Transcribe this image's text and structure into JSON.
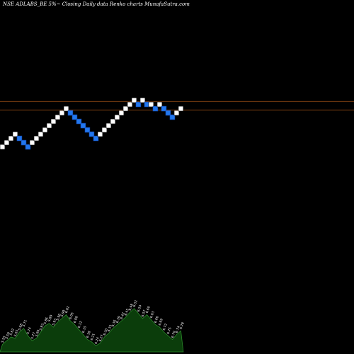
{
  "title": "NSE ADLABS_BE 5%~  Closing Daily data  Renko  charts MunafaSutra.com",
  "colors": {
    "background": "#000000",
    "up_brick": "#ffffff",
    "down_brick": "#2277ee",
    "down_brick_border": "#1144aa",
    "reference_line": "#8b4513",
    "volume_fill": "#0b3d0b",
    "volume_stroke": "#2b8a2b",
    "label_text": "#ffffff"
  },
  "chart_data": {
    "type": "renko",
    "title": "NSE ADLABS_BE 5%~  Closing Daily data  Renko  charts MunafaSutra.com",
    "brick_size_pct": 5,
    "bricks": [
      {
        "level": 0,
        "dir": "up"
      },
      {
        "level": 1,
        "dir": "up"
      },
      {
        "level": 2,
        "dir": "up"
      },
      {
        "level": 3,
        "dir": "up"
      },
      {
        "level": 2,
        "dir": "down"
      },
      {
        "level": 1,
        "dir": "down"
      },
      {
        "level": 0,
        "dir": "down"
      },
      {
        "level": 1,
        "dir": "up"
      },
      {
        "level": 2,
        "dir": "up"
      },
      {
        "level": 3,
        "dir": "up"
      },
      {
        "level": 4,
        "dir": "up"
      },
      {
        "level": 5,
        "dir": "up"
      },
      {
        "level": 6,
        "dir": "up"
      },
      {
        "level": 7,
        "dir": "up"
      },
      {
        "level": 8,
        "dir": "up"
      },
      {
        "level": 9,
        "dir": "up"
      },
      {
        "level": 8,
        "dir": "down"
      },
      {
        "level": 7,
        "dir": "down"
      },
      {
        "level": 6,
        "dir": "down"
      },
      {
        "level": 5,
        "dir": "down"
      },
      {
        "level": 4,
        "dir": "down"
      },
      {
        "level": 3,
        "dir": "down"
      },
      {
        "level": 2,
        "dir": "down"
      },
      {
        "level": 3,
        "dir": "up"
      },
      {
        "level": 4,
        "dir": "up"
      },
      {
        "level": 5,
        "dir": "up"
      },
      {
        "level": 6,
        "dir": "up"
      },
      {
        "level": 7,
        "dir": "up"
      },
      {
        "level": 8,
        "dir": "up"
      },
      {
        "level": 9,
        "dir": "up"
      },
      {
        "level": 10,
        "dir": "up"
      },
      {
        "level": 11,
        "dir": "up"
      },
      {
        "level": 10,
        "dir": "down"
      },
      {
        "level": 11,
        "dir": "up"
      },
      {
        "level": 10,
        "dir": "down"
      },
      {
        "level": 10,
        "dir": "up"
      },
      {
        "level": 9,
        "dir": "down"
      },
      {
        "level": 10,
        "dir": "up"
      },
      {
        "level": 9,
        "dir": "down"
      },
      {
        "level": 8,
        "dir": "down"
      },
      {
        "level": 7,
        "dir": "down"
      },
      {
        "level": 8,
        "dir": "up"
      },
      {
        "level": 9,
        "dir": "up"
      }
    ],
    "reference_levels": [
      10.7,
      8.7
    ],
    "volume_labels": [
      "5.55",
      "5.59",
      "5.62",
      "5.65",
      "5.68",
      "5.71",
      "5.74",
      "5.77",
      "5.80",
      "5.83",
      "5.86",
      "5.89",
      "5.93",
      "5.96",
      "5.99",
      "6.02",
      "6.05",
      "6.08",
      "6.12",
      "6.15",
      "6.18",
      "6.21",
      "6.24",
      "6.27",
      "6.30",
      "6.33",
      "6.36",
      "6.39",
      "6.42",
      "6.45",
      "6.48",
      "6.51",
      "6.54",
      "6.57",
      "6.60",
      "6.63",
      "6.66",
      "6.69",
      "6.72",
      "6.75",
      "6.70",
      "6.74",
      "6.78"
    ],
    "volume_values": [
      6,
      9,
      12,
      11,
      16,
      19,
      13,
      9,
      11,
      16,
      21,
      23,
      20,
      24,
      27,
      30,
      25,
      22,
      18,
      14,
      10,
      8,
      5,
      7,
      12,
      15,
      19,
      22,
      25,
      28,
      32,
      35,
      31,
      27,
      30,
      26,
      22,
      20,
      16,
      13,
      10,
      14,
      17
    ]
  }
}
